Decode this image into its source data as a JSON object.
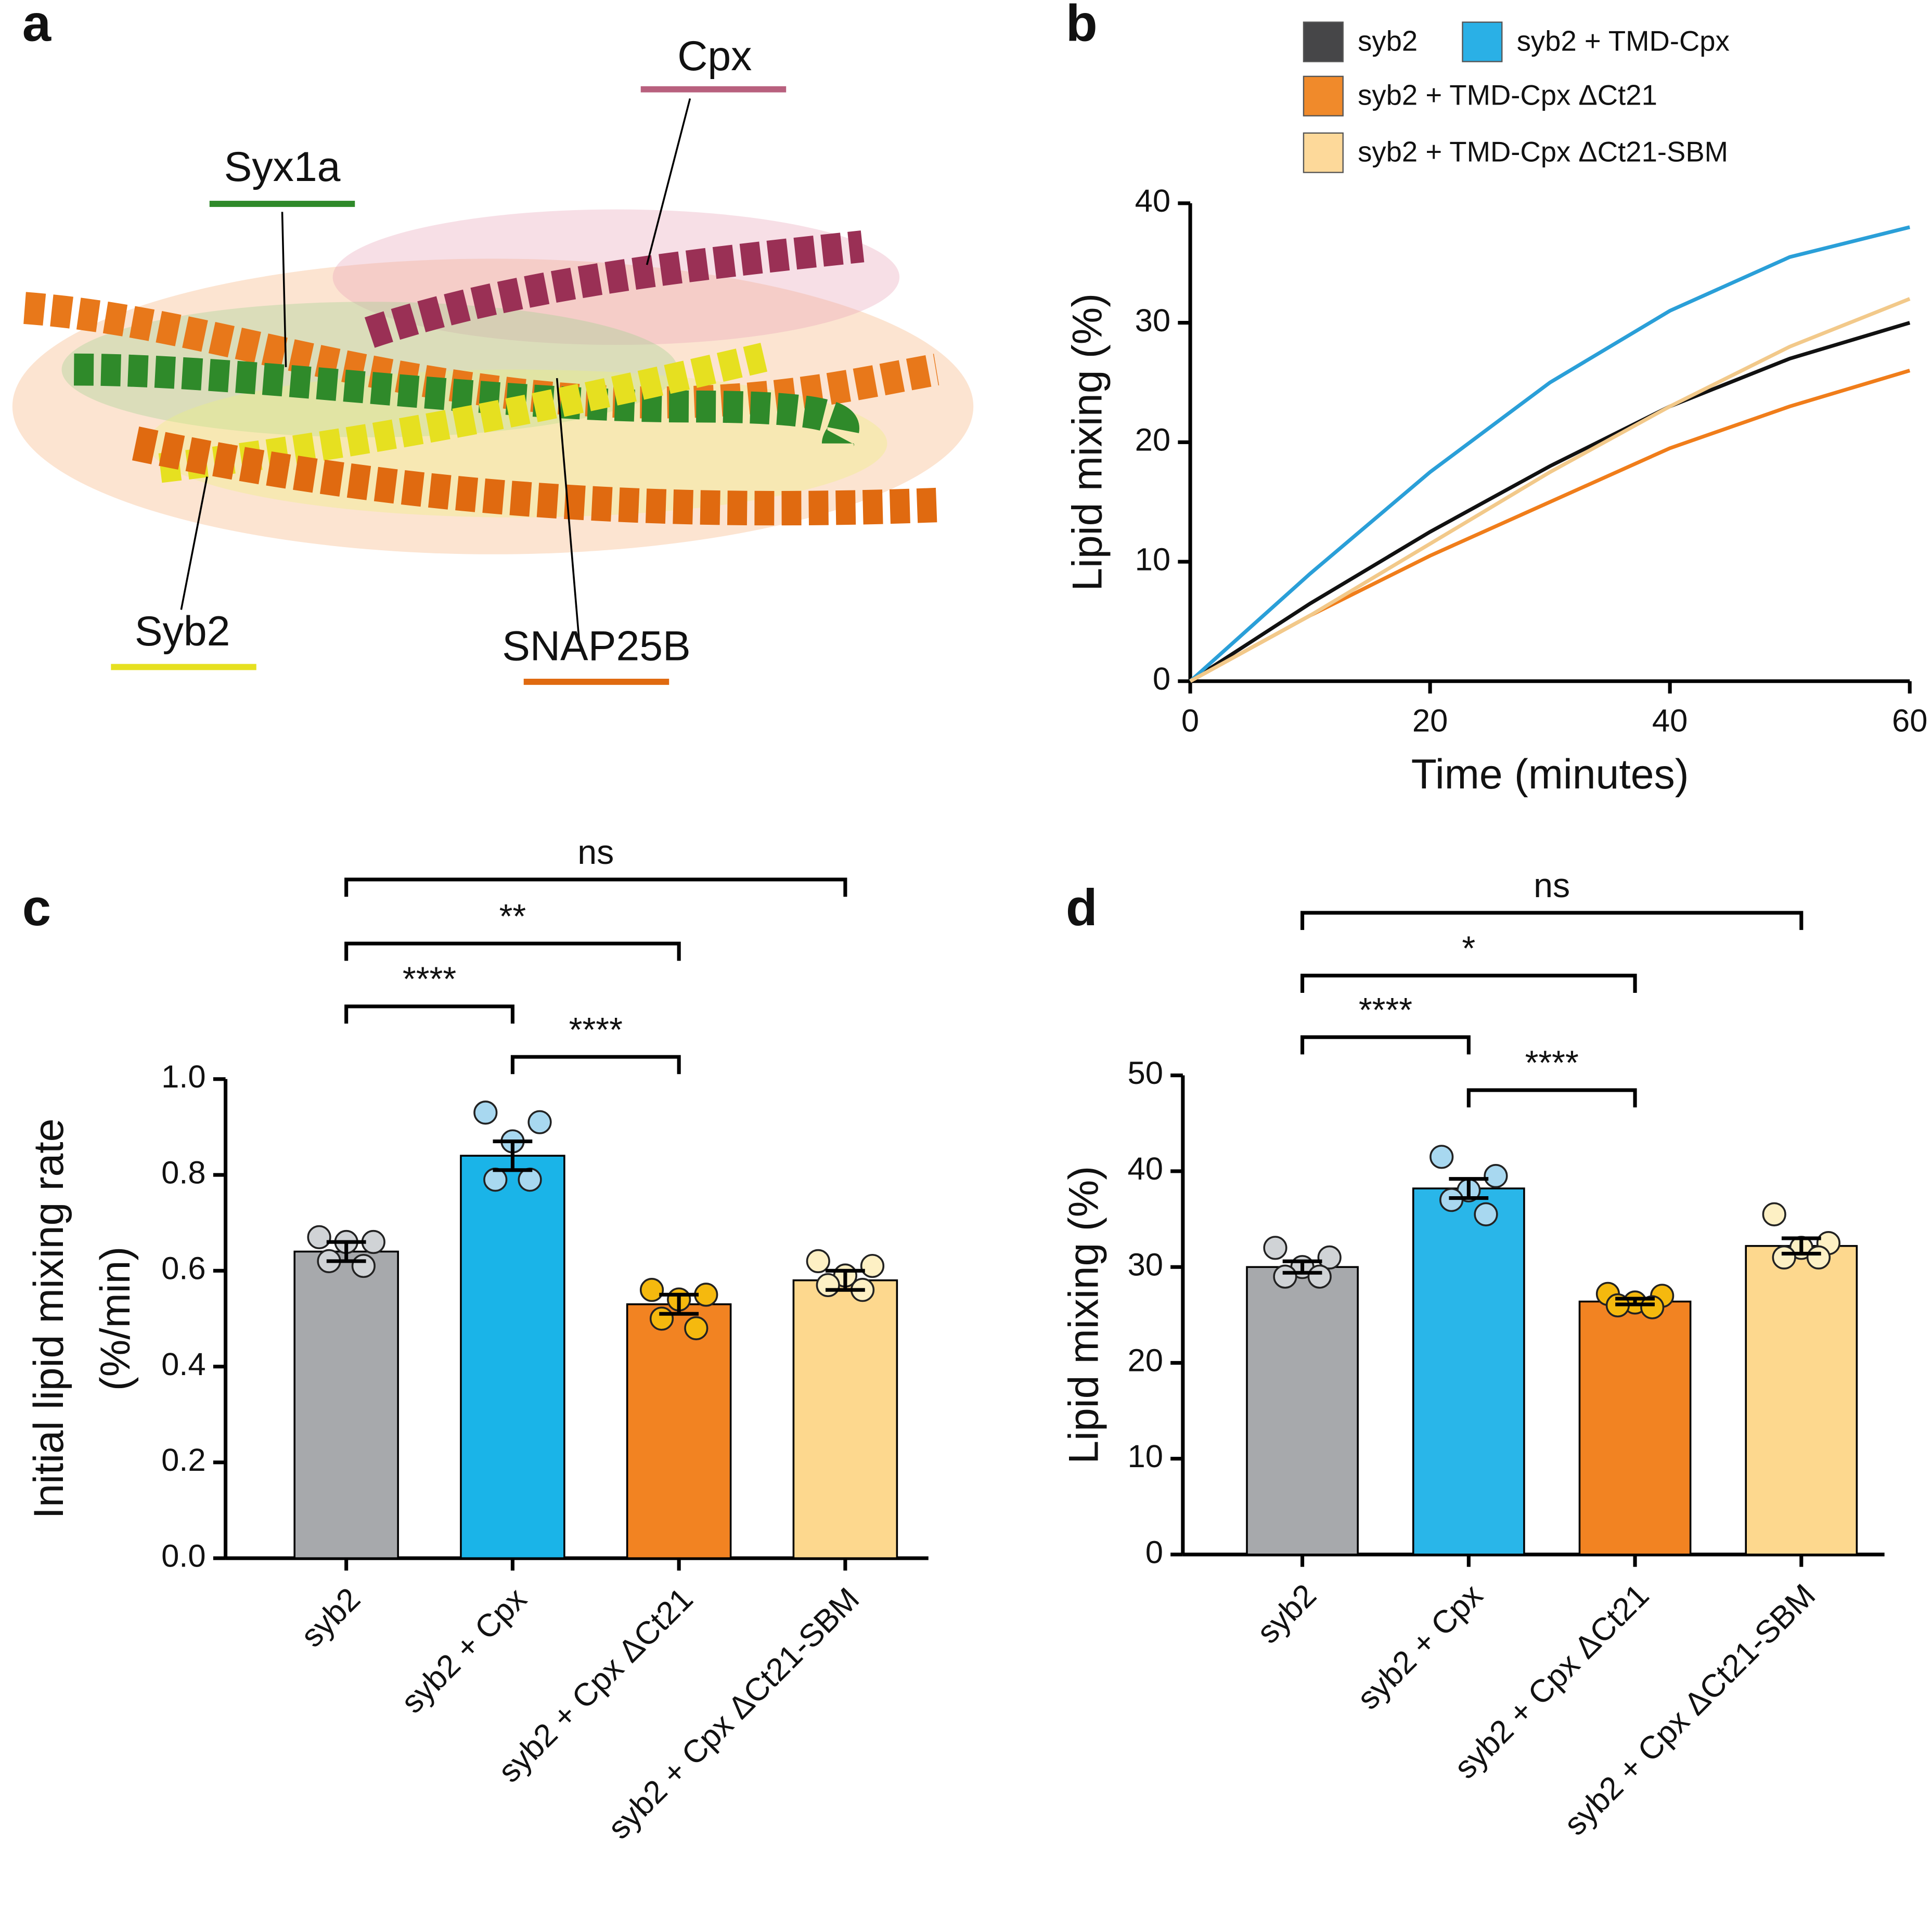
{
  "structure": {
    "panel_label": "a",
    "labels": [
      "Cpx",
      "Syx1a",
      "Syb2",
      "SNAP25B"
    ]
  },
  "chart_data": [
    {
      "type": "line",
      "panel_label": "b",
      "xlabel": "Time (minutes)",
      "ylabel": "Lipid mixing (%)",
      "x": [
        0,
        10,
        20,
        30,
        40,
        50,
        60
      ],
      "series": [
        {
          "name": "syb2",
          "color": "#111111",
          "legend_color": "#464648",
          "values": [
            0,
            6.5,
            12.5,
            18,
            23,
            27,
            30
          ]
        },
        {
          "name": "syb2 + TMD-Cpx",
          "color": "#2a9fd8",
          "legend_color": "#2ab0e6",
          "values": [
            0,
            9,
            17.5,
            25,
            31,
            35.5,
            38
          ]
        },
        {
          "name": "syb2 + TMD-Cpx ΔCt21",
          "color": "#f07d1a",
          "legend_color": "#f08a2b",
          "values": [
            0,
            5.5,
            10.5,
            15,
            19.5,
            23,
            26
          ]
        },
        {
          "name": "syb2 + TMD-Cpx ΔCt21-SBM",
          "color": "#f2c98a",
          "legend_color": "#fdd99a",
          "values": [
            0,
            5.5,
            11.5,
            17.5,
            23,
            28,
            32
          ]
        }
      ],
      "xlim": [
        0,
        60
      ],
      "xticks": [
        0,
        20,
        40,
        60
      ],
      "ylim": [
        0,
        40
      ],
      "yticks": [
        0,
        10,
        20,
        30,
        40
      ],
      "legend": "top"
    },
    {
      "type": "bar",
      "panel_label": "c",
      "ylabel": [
        "Initial lipid mixing rate",
        "(%/min)"
      ],
      "categories": [
        "syb2",
        "syb2 + Cpx",
        "syb2 + Cpx ΔCt21",
        "syb2 + Cpx ΔCt21-SBM"
      ],
      "values": [
        0.64,
        0.84,
        0.53,
        0.58
      ],
      "errors": [
        0.02,
        0.03,
        0.02,
        0.02
      ],
      "colors": [
        "#a7a9ac",
        "#1ab4e8",
        "#f28322",
        "#fdd88e"
      ],
      "point_colors": [
        "#d0d3d6",
        "#a8d8f0",
        "#f5b90e",
        "#fdf0c4"
      ],
      "points": [
        [
          0.67,
          0.66,
          0.66,
          0.62,
          0.61
        ],
        [
          0.93,
          0.91,
          0.87,
          0.79,
          0.79
        ],
        [
          0.56,
          0.55,
          0.54,
          0.5,
          0.48
        ],
        [
          0.62,
          0.61,
          0.59,
          0.57,
          0.56
        ]
      ],
      "ylim": [
        0,
        1
      ],
      "yticks": [
        {
          "value": 0,
          "label": "0.0"
        },
        0.2,
        0.4,
        0.6,
        0.8,
        {
          "value": 1,
          "label": "1.0"
        }
      ],
      "annotations": [
        {
          "text": "ns",
          "pair": [
            0,
            3
          ]
        },
        {
          "text": "**",
          "pair": [
            0,
            2
          ]
        },
        {
          "text": "****",
          "pair": [
            0,
            1
          ]
        },
        {
          "text": "****",
          "pair": [
            1,
            2
          ]
        }
      ]
    },
    {
      "type": "bar",
      "panel_label": "d",
      "ylabel": [
        "Lipid mixing (%)"
      ],
      "categories": [
        "syb2",
        "syb2 + Cpx",
        "syb2 + Cpx ΔCt21",
        "syb2 + Cpx ΔCt21-SBM"
      ],
      "values": [
        30,
        38.2,
        26.4,
        32.2
      ],
      "errors": [
        0.6,
        1.0,
        0.3,
        0.8
      ],
      "colors": [
        "#a7a9ac",
        "#29b6e9",
        "#f28322",
        "#fdd88e"
      ],
      "point_colors": [
        "#d0d3d6",
        "#a8d8f0",
        "#f5b90e",
        "#fdf0c4"
      ],
      "points": [
        [
          32,
          31,
          30,
          29,
          29
        ],
        [
          41.5,
          39.5,
          38,
          37,
          35.5
        ],
        [
          27.2,
          27,
          26.3,
          26,
          25.8
        ],
        [
          35.5,
          32.5,
          32,
          31,
          31
        ]
      ],
      "ylim": [
        0,
        50
      ],
      "yticks": [
        0,
        10,
        20,
        30,
        40,
        50
      ],
      "annotations": [
        {
          "text": "ns",
          "pair": [
            0,
            3
          ]
        },
        {
          "text": "*",
          "pair": [
            0,
            2
          ]
        },
        {
          "text": "****",
          "pair": [
            0,
            1
          ]
        },
        {
          "text": "****",
          "pair": [
            1,
            2
          ]
        }
      ]
    }
  ]
}
